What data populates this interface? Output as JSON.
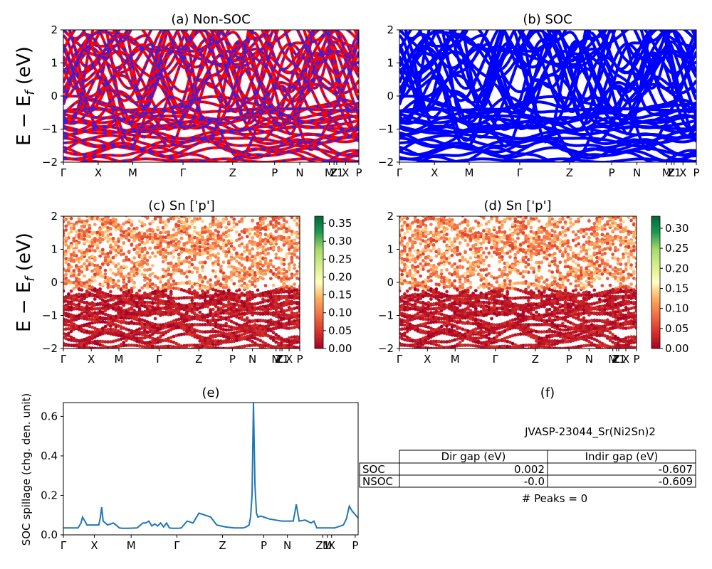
{
  "chart_data": [
    {
      "panel": "a",
      "type": "line",
      "title": "(a) Non-SOC",
      "ylabel": "E − E_f (eV)",
      "ylim": [
        -2,
        2
      ],
      "yticks": [
        "−2",
        "−1",
        "0",
        "1",
        "2"
      ],
      "kpath": [
        "Γ",
        "X",
        "M",
        "Γ",
        "Z",
        "P",
        "N",
        "M",
        "Z",
        "Z1",
        "X",
        "P"
      ],
      "series": [
        {
          "values_note_color": "#ff0000"
        },
        {
          "values_note_color": "#1f1fff"
        }
      ]
    },
    {
      "panel": "b",
      "type": "line",
      "title": "(b) SOC",
      "ylim": [
        -2,
        2
      ],
      "yticks": [
        "−2",
        "−1",
        "0",
        "1",
        "2"
      ],
      "kpath": [
        "Γ",
        "X",
        "M",
        "Γ",
        "Z",
        "P",
        "N",
        "M",
        "Z",
        "Z1",
        "X",
        "P"
      ]
    },
    {
      "panel": "c",
      "type": "scatter",
      "title": "(c)  Sn ['p']",
      "ylabel": "E − E_f (eV)",
      "ylim": [
        -2,
        2
      ],
      "yticks": [
        "−2",
        "−1",
        "0",
        "1",
        "2"
      ],
      "kpath": [
        "Γ",
        "X",
        "M",
        "Γ",
        "Z",
        "P",
        "N",
        "M",
        "Z",
        "Z1",
        "X",
        "P"
      ],
      "colorbar": {
        "min": 0.0,
        "max": 0.37,
        "ticks": [
          "0.00",
          "0.05",
          "0.10",
          "0.15",
          "0.20",
          "0.25",
          "0.30",
          "0.35"
        ]
      }
    },
    {
      "panel": "d",
      "type": "scatter",
      "title": "(d) Sn ['p']",
      "ylim": [
        -2,
        2
      ],
      "yticks": [
        "−2",
        "−1",
        "0",
        "1",
        "2"
      ],
      "kpath": [
        "Γ",
        "X",
        "M",
        "Γ",
        "Z",
        "P",
        "N",
        "M",
        "Z",
        "Z1",
        "X",
        "P"
      ],
      "colorbar": {
        "min": 0.0,
        "max": 0.33,
        "ticks": [
          "0.00",
          "0.05",
          "0.10",
          "0.15",
          "0.20",
          "0.25",
          "0.30"
        ]
      }
    },
    {
      "panel": "e",
      "type": "line",
      "title": "(e)",
      "ylabel": "SOC spillage (chg. den. unit)",
      "ylim": [
        0,
        0.67
      ],
      "yticks": [
        "0.0",
        "0.2",
        "0.4",
        "0.6"
      ],
      "kpath": [
        "Γ",
        "X",
        "M",
        "Γ",
        "Z",
        "P",
        "N",
        "Z1",
        "M",
        "X",
        "P"
      ],
      "x": [
        0,
        0.05,
        0.06,
        0.065,
        0.075,
        0.08,
        0.1,
        0.12,
        0.125,
        0.13,
        0.135,
        0.15,
        0.17,
        0.19,
        0.2,
        0.21,
        0.22,
        0.25,
        0.27,
        0.28,
        0.29,
        0.3,
        0.31,
        0.32,
        0.33,
        0.34,
        0.35,
        0.36,
        0.37,
        0.38,
        0.39,
        0.4,
        0.42,
        0.44,
        0.46,
        0.48,
        0.5,
        0.52,
        0.55,
        0.58,
        0.6,
        0.61,
        0.62,
        0.63,
        0.635,
        0.64,
        0.645,
        0.65,
        0.655,
        0.66,
        0.67,
        0.68,
        0.69,
        0.7,
        0.72,
        0.74,
        0.76,
        0.78,
        0.785,
        0.79,
        0.8,
        0.82,
        0.84,
        0.85,
        0.86,
        0.88,
        0.9,
        0.92,
        0.93,
        0.95,
        0.96,
        0.97,
        0.98,
        1.0
      ],
      "values": [
        0.035,
        0.035,
        0.06,
        0.09,
        0.065,
        0.05,
        0.05,
        0.05,
        0.085,
        0.14,
        0.07,
        0.05,
        0.06,
        0.035,
        0.033,
        0.033,
        0.033,
        0.035,
        0.06,
        0.06,
        0.07,
        0.045,
        0.055,
        0.045,
        0.06,
        0.04,
        0.06,
        0.035,
        0.033,
        0.033,
        0.033,
        0.035,
        0.07,
        0.06,
        0.11,
        0.1,
        0.09,
        0.05,
        0.04,
        0.035,
        0.035,
        0.035,
        0.04,
        0.05,
        0.09,
        0.2,
        0.67,
        0.25,
        0.11,
        0.09,
        0.095,
        0.09,
        0.085,
        0.08,
        0.075,
        0.07,
        0.07,
        0.07,
        0.11,
        0.155,
        0.07,
        0.075,
        0.06,
        0.07,
        0.035,
        0.035,
        0.035,
        0.035,
        0.04,
        0.05,
        0.08,
        0.145,
        0.12,
        0.085
      ]
    }
  ],
  "table": {
    "title": "JVASP-23044_Sr(Ni2Sn)2",
    "headers": [
      "",
      "Dir gap (eV)",
      "Indir gap (eV)"
    ],
    "rows": [
      {
        "label": "SOC",
        "dir": "0.002",
        "indir": "-0.607"
      },
      {
        "label": "NSOC",
        "dir": "-0.0",
        "indir": "-0.609"
      }
    ],
    "footer": "# Peaks = 0",
    "panel_title": "(f)"
  },
  "colors": {
    "soc": "#0000ff",
    "nonsoc_a": "#ff0000",
    "nonsoc_b": "#2222ff",
    "spillage": "#1f77b4"
  }
}
